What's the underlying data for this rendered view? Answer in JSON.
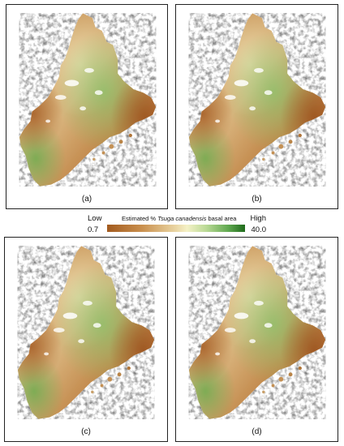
{
  "panels": [
    {
      "id": "a",
      "label": "(a)"
    },
    {
      "id": "b",
      "label": "(b)"
    },
    {
      "id": "c",
      "label": "(c)"
    },
    {
      "id": "d",
      "label": "(d)"
    }
  ],
  "legend": {
    "title_prefix": "Estimated % ",
    "title_species": "Tsuga canadensis",
    "title_suffix": " basal area",
    "low_label": "Low",
    "high_label": "High",
    "min_value": "0.7",
    "max_value": "40.0",
    "colors": {
      "low": "#a25a1e",
      "mid_low": "#c98f4d",
      "mid": "#ead6a4",
      "pale": "#f4f1c6",
      "mid_high": "#b9d995",
      "high_light": "#5fa84f",
      "high": "#1f6b1c"
    }
  }
}
